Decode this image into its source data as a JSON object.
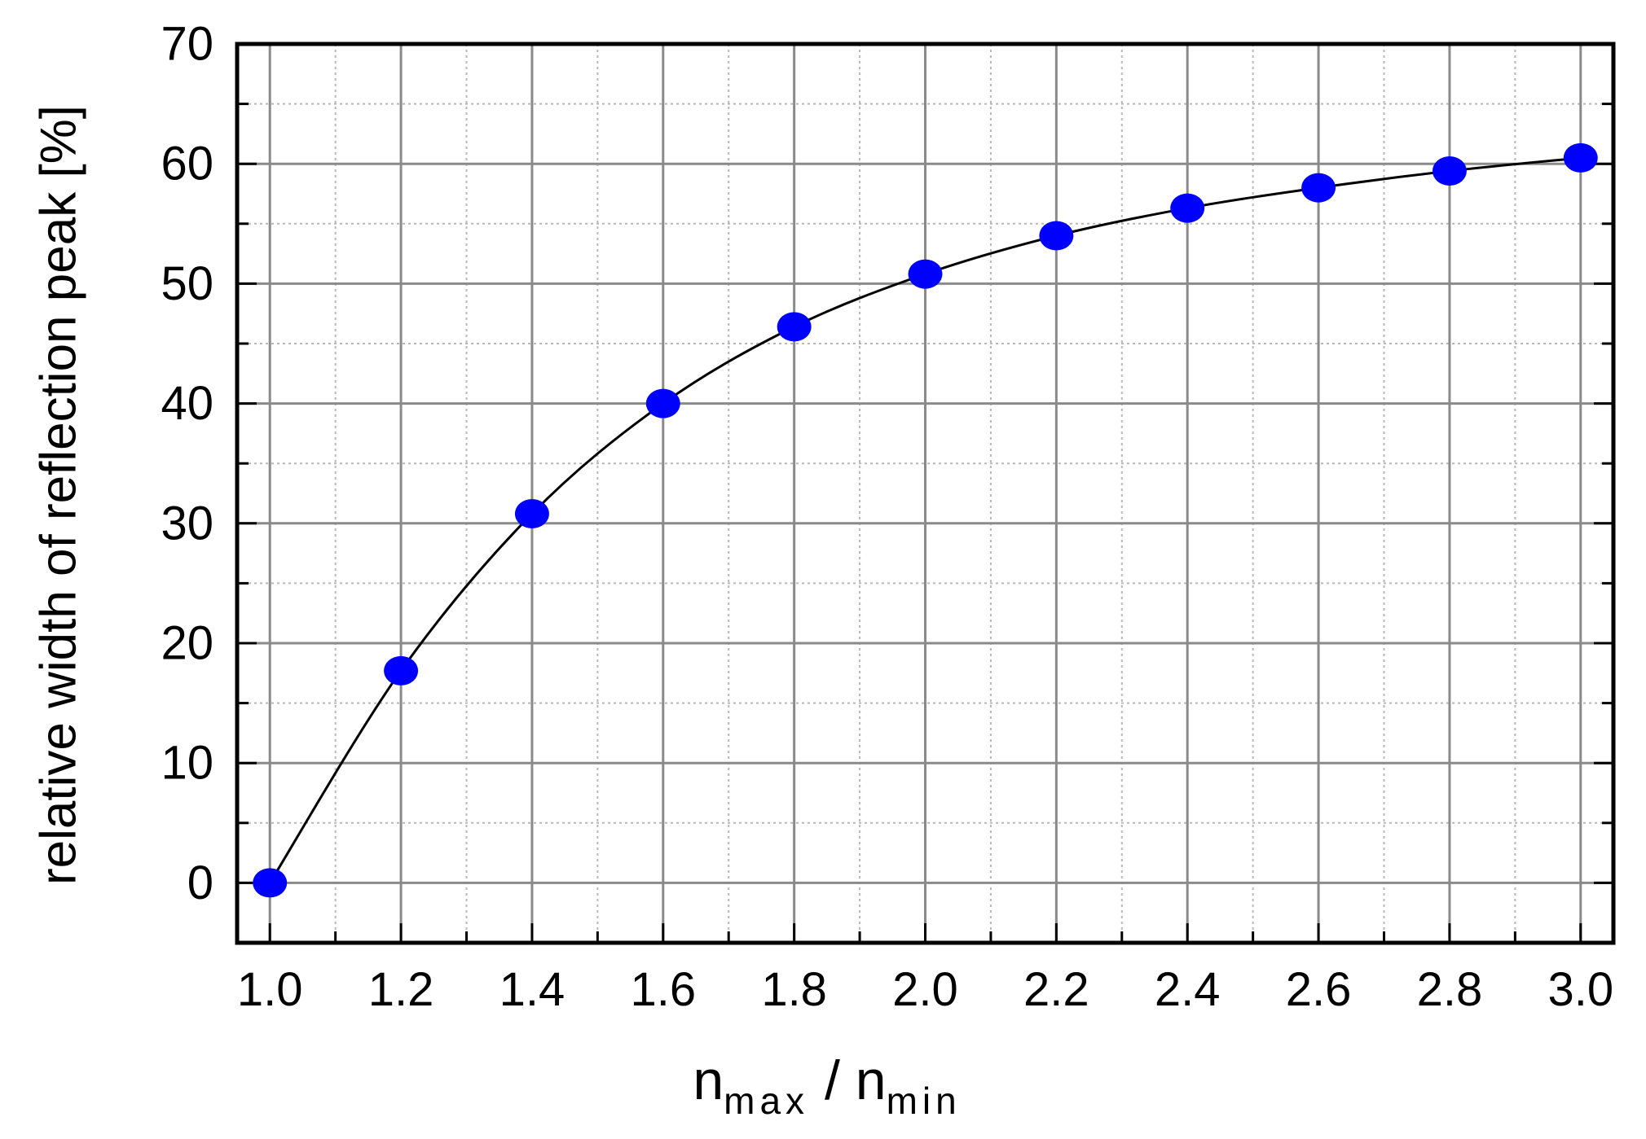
{
  "chart_data": {
    "type": "line",
    "title": "",
    "xlabel": {
      "main": "n",
      "sub1": "max",
      "sep": " / ",
      "main2": "n",
      "sub2": "min"
    },
    "ylabel": "relative width of reflection peak [%]",
    "xlim": [
      0.95,
      3.05
    ],
    "ylim": [
      -5,
      70
    ],
    "xticks": [
      1.0,
      1.2,
      1.4,
      1.6,
      1.8,
      2.0,
      2.2,
      2.4,
      2.6,
      2.8,
      3.0
    ],
    "xtick_labels": [
      "1.0",
      "1.2",
      "1.4",
      "1.6",
      "1.8",
      "2.0",
      "2.2",
      "2.4",
      "2.6",
      "2.8",
      "3.0"
    ],
    "yticks": [
      0,
      10,
      20,
      30,
      40,
      50,
      60,
      70
    ],
    "ytick_labels": [
      "0",
      "10",
      "20",
      "30",
      "40",
      "50",
      "60",
      "70"
    ],
    "grid": true,
    "series": [
      {
        "x": [
          1.0,
          1.2,
          1.4,
          1.6,
          1.8,
          2.0,
          2.2,
          2.4,
          2.6,
          2.8,
          3.0
        ],
        "y": [
          0.0,
          17.7,
          30.8,
          40.0,
          46.4,
          50.8,
          54.0,
          56.3,
          58.0,
          59.4,
          60.5
        ],
        "marker_color": "#0000ff",
        "line_color": "#000000"
      }
    ]
  }
}
